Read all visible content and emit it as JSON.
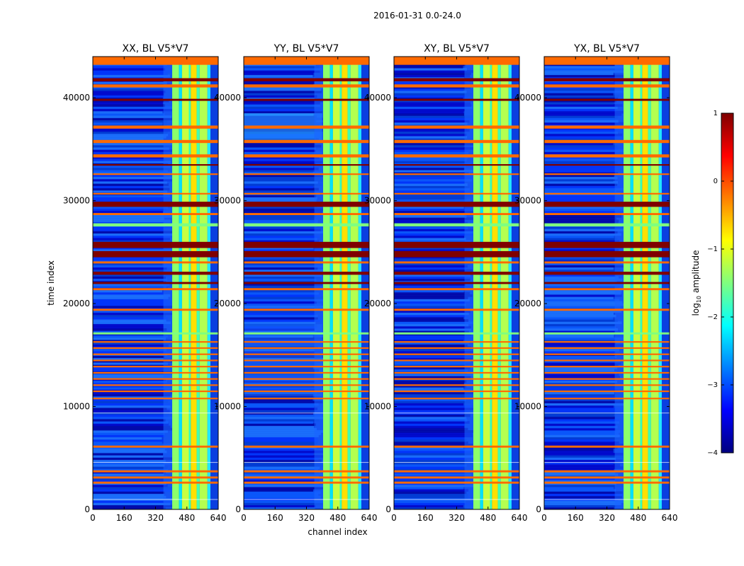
{
  "figure_title": "2016-01-31 0.0-24.0",
  "colors": {
    "jet_stops": [
      "#00007f",
      "#0000ff",
      "#007fff",
      "#00ffff",
      "#7fff7f",
      "#ffff00",
      "#ff7f00",
      "#ff0000",
      "#7f0000"
    ],
    "flag_orange": "#ff6a00",
    "flag_dark": "#7f0000",
    "flag_green": "#7fff7f"
  },
  "chart_data": [
    {
      "type": "heatmap",
      "title": "XX, BL V5*V7",
      "xlabel": "",
      "ylabel": "time index",
      "xlim": [
        0,
        640
      ],
      "ylim": [
        0,
        44000
      ],
      "xticks": [
        "0",
        "160",
        "320",
        "480",
        "640"
      ],
      "yticks": [
        "0",
        "10000",
        "20000",
        "30000",
        "40000"
      ]
    },
    {
      "type": "heatmap",
      "title": "YY, BL V5*V7",
      "xlabel": "channel index",
      "ylabel": "",
      "xlim": [
        0,
        640
      ],
      "ylim": [
        0,
        44000
      ],
      "xticks": [
        "0",
        "160",
        "320",
        "480",
        "640"
      ],
      "yticks": [
        "0",
        "10000",
        "20000",
        "30000",
        "40000"
      ]
    },
    {
      "type": "heatmap",
      "title": "XY, BL V5*V7",
      "xlabel": "",
      "ylabel": "",
      "xlim": [
        0,
        640
      ],
      "ylim": [
        0,
        44000
      ],
      "xticks": [
        "0",
        "160",
        "320",
        "480",
        "640"
      ],
      "yticks": [
        "0",
        "10000",
        "20000",
        "30000",
        "40000"
      ]
    },
    {
      "type": "heatmap",
      "title": "YX, BL V5*V7",
      "xlabel": "",
      "ylabel": "",
      "xlim": [
        0,
        640
      ],
      "ylim": [
        0,
        44000
      ],
      "xticks": [
        "0",
        "160",
        "320",
        "480",
        "640"
      ],
      "yticks": [
        "0",
        "10000",
        "20000",
        "30000",
        "40000"
      ]
    }
  ],
  "colorbar": {
    "label_prefix": "log",
    "label_sub": "10",
    "label_suffix": " amplitude",
    "range": [
      -4,
      1
    ],
    "ticks": [
      "1",
      "0",
      "−1",
      "−2",
      "−3",
      "−4"
    ]
  }
}
